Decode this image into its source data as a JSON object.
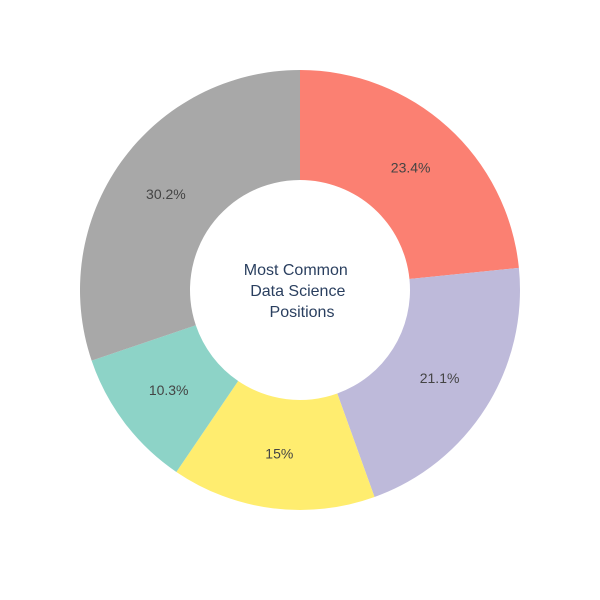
{
  "chart_data": {
    "type": "pie",
    "hole": true,
    "center_text": [
      "Most Common",
      "Data Science",
      "Positions"
    ],
    "slices": [
      {
        "label": "",
        "value": 23.4,
        "display": "23.4%",
        "color": "#fb8072"
      },
      {
        "label": "",
        "value": 21.1,
        "display": "21.1%",
        "color": "#bebada"
      },
      {
        "label": "",
        "value": 15,
        "display": "15%",
        "color": "#ffed6f"
      },
      {
        "label": "",
        "value": 10.3,
        "display": "10.3%",
        "color": "#8dd3c7"
      },
      {
        "label": "",
        "value": 30.2,
        "display": "30.2%",
        "color": "#a8a8a8"
      }
    ],
    "start": "top",
    "direction": "clockwise",
    "legend": "none"
  }
}
